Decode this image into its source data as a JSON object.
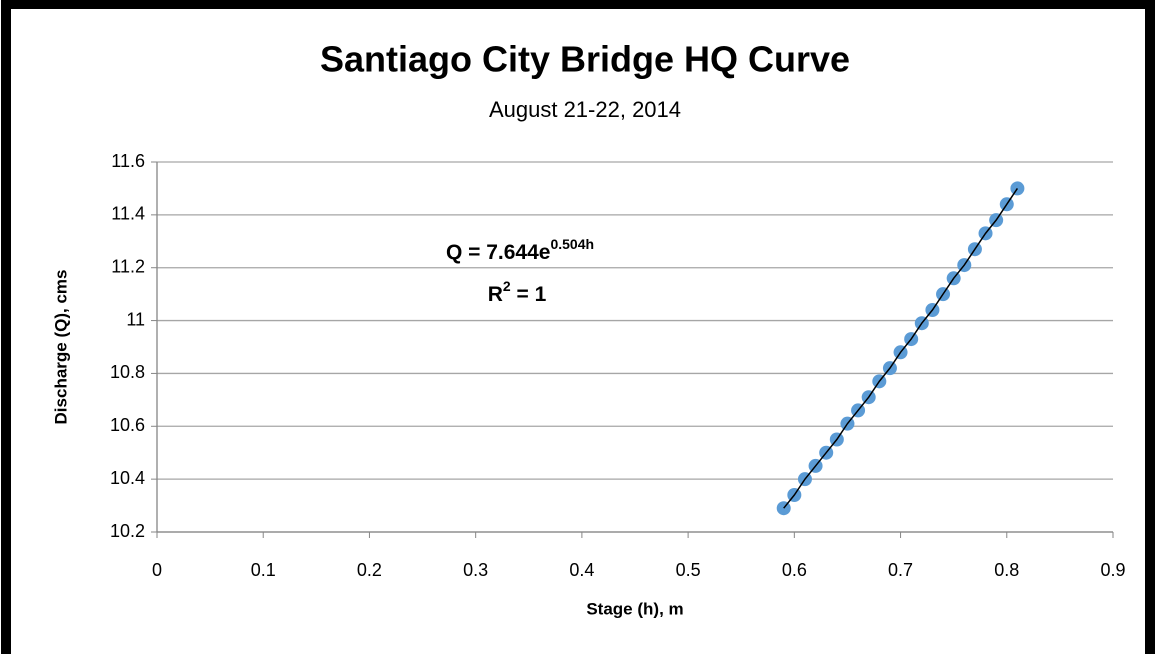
{
  "chart_data": {
    "type": "scatter",
    "title": "Santiago City Bridge HQ Curve",
    "subtitle": "August 21-22, 2014",
    "x_label": "Stage (h), m",
    "y_label": "Discharge  (Q), cms",
    "annotation": {
      "equation": "Q = 7.644e",
      "equation_exponent": "0.504h",
      "r2": "R",
      "r2_exponent": "2",
      "r2_rest": " = 1"
    },
    "series": [
      {
        "color": "#5b9bd5",
        "x": [
          0.59,
          0.6,
          0.61,
          0.62,
          0.63,
          0.64,
          0.65,
          0.66,
          0.67,
          0.68,
          0.69,
          0.7,
          0.71,
          0.72,
          0.73,
          0.74,
          0.75,
          0.76,
          0.77,
          0.78,
          0.79,
          0.8,
          0.81
        ],
        "values": [
          10.29,
          10.34,
          10.4,
          10.45,
          10.5,
          10.55,
          10.61,
          10.66,
          10.71,
          10.77,
          10.82,
          10.88,
          10.93,
          10.99,
          11.04,
          11.1,
          11.16,
          11.21,
          11.27,
          11.33,
          11.38,
          11.44,
          11.5
        ]
      }
    ],
    "trendline_color": "#000000",
    "xlim": [
      0,
      0.9
    ],
    "xticks": [
      0,
      0.1,
      0.2,
      0.3,
      0.4,
      0.5,
      0.6,
      0.7,
      0.8,
      0.9
    ],
    "ylim": [
      10.2,
      11.6
    ],
    "yticks": [
      10.2,
      10.4,
      10.6,
      10.8,
      11,
      11.2,
      11.4,
      11.6
    ],
    "grid": true
  }
}
